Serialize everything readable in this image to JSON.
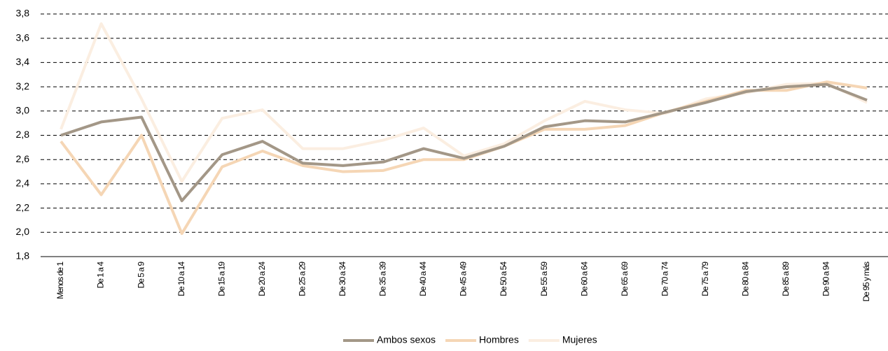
{
  "chart_data": {
    "type": "line",
    "categories": [
      "Menos de 1",
      "De 1 a 4",
      "De 5 a 9",
      "De 10 a 14",
      "De 15 a 19",
      "De 20 a 24",
      "De 25 a 29",
      "De 30 a 34",
      "De 35 a 39",
      "De 40 a 44",
      "De 45 a 49",
      "De 50 a 54",
      "De 55 a 59",
      "De 60 a 64",
      "De 65 a 69",
      "De 70 a 74",
      "De 75 a 79",
      "De 80 a 84",
      "De 85 a 89",
      "De 90 a 94",
      "De 95 y más"
    ],
    "series": [
      {
        "name": "Ambos sexos",
        "color": "#a39787",
        "values": [
          2.8,
          2.91,
          2.95,
          2.26,
          2.64,
          2.75,
          2.57,
          2.55,
          2.58,
          2.69,
          2.61,
          2.71,
          2.87,
          2.92,
          2.91,
          2.99,
          3.07,
          3.16,
          3.2,
          3.22,
          3.09
        ]
      },
      {
        "name": "Hombres",
        "color": "#f5d6b5",
        "values": [
          2.75,
          2.31,
          2.8,
          1.99,
          2.54,
          2.67,
          2.55,
          2.5,
          2.51,
          2.6,
          2.6,
          2.71,
          2.85,
          2.85,
          2.88,
          2.99,
          3.08,
          3.17,
          3.17,
          3.24,
          3.19
        ]
      },
      {
        "name": "Mujeres",
        "color": "#fbeee1",
        "values": [
          2.85,
          3.72,
          3.1,
          2.42,
          2.94,
          3.01,
          2.69,
          2.69,
          2.76,
          2.86,
          2.63,
          2.73,
          2.92,
          3.08,
          3.01,
          2.98,
          3.1,
          3.15,
          3.22,
          3.23,
          3.07
        ]
      }
    ],
    "ylim": [
      1.8,
      3.8
    ],
    "yticks": [
      {
        "value": 1.8,
        "label": "1,8"
      },
      {
        "value": 2.0,
        "label": "2,0"
      },
      {
        "value": 2.2,
        "label": "2,2"
      },
      {
        "value": 2.4,
        "label": "2,4"
      },
      {
        "value": 2.6,
        "label": "2,6"
      },
      {
        "value": 2.8,
        "label": "2,8"
      },
      {
        "value": 3.0,
        "label": "3,0"
      },
      {
        "value": 3.2,
        "label": "3,2"
      },
      {
        "value": 3.4,
        "label": "3,4"
      },
      {
        "value": 3.6,
        "label": "3,6"
      },
      {
        "value": 3.8,
        "label": "3,8"
      }
    ],
    "grid": true,
    "legend": "bottom"
  }
}
